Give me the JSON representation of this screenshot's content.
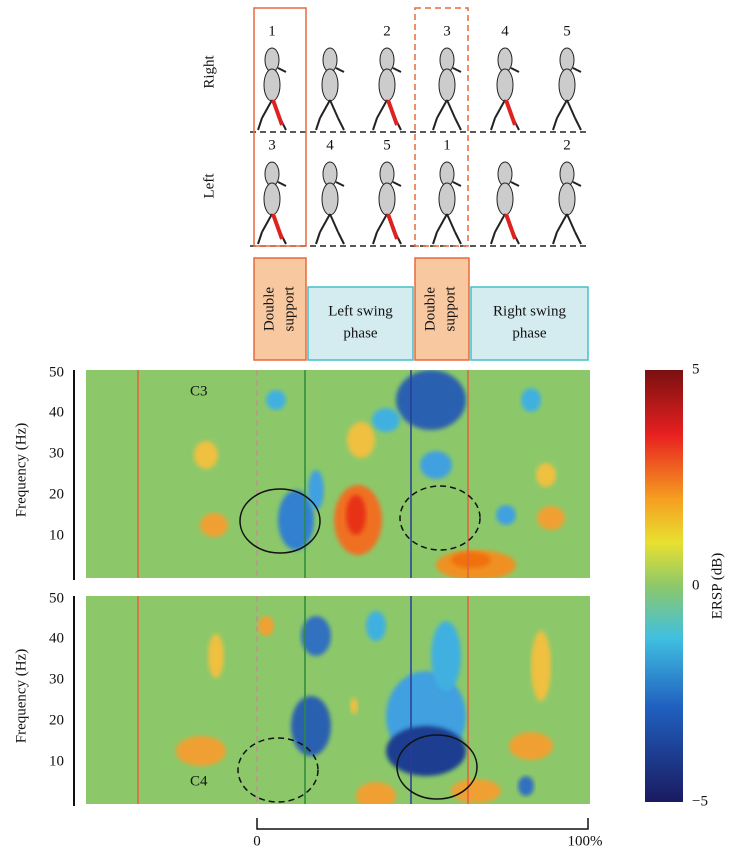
{
  "figure": {
    "gait": {
      "rows": [
        {
          "label": "Right",
          "steps": [
            "1",
            "2",
            "3",
            "4",
            "5"
          ]
        },
        {
          "label": "Left",
          "steps": [
            "3",
            "4",
            "5",
            "1",
            "2"
          ]
        }
      ],
      "phases": [
        [
          "Double",
          "support"
        ],
        [
          "Left swing",
          "phase"
        ],
        [
          "Double",
          "support"
        ],
        [
          "Right swing",
          "phase"
        ]
      ]
    },
    "panels": [
      {
        "label": "C3"
      },
      {
        "label": "C4"
      }
    ],
    "y_axis": {
      "label": "Frequency (Hz)",
      "ticks": [
        "50",
        "40",
        "30",
        "20",
        "10"
      ]
    },
    "colorbar": {
      "label": "ERSP (dB)",
      "ticks": [
        "5",
        "0",
        "−5"
      ]
    },
    "x_axis": {
      "ticks": [
        "0",
        "100%"
      ]
    }
  }
}
